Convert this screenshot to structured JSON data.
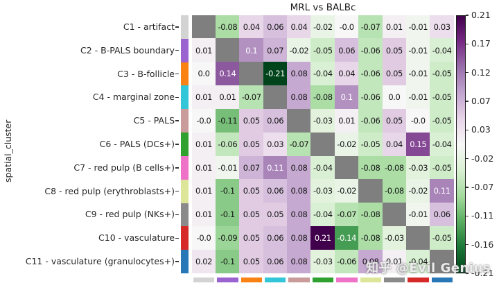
{
  "title": "MRL vs BALBc",
  "y_axis_label": "spatial_cluster",
  "watermark": "知乎 @Evil Genius",
  "chart_data": {
    "type": "heatmap",
    "title": "MRL vs BALBc",
    "ylabel": "spatial_cluster",
    "xlabel": "",
    "vmin": -0.21,
    "vmax": 0.21,
    "colormap": "PRGn_r (purple = positive, green = negative)",
    "colormap_stops_pos_to_neg": [
      "#40004b",
      "#762a83",
      "#9970ab",
      "#c2a5cf",
      "#e7d4e8",
      "#f7f7f7",
      "#d9f0d3",
      "#a6dba0",
      "#5aae61",
      "#1b7837",
      "#00441b"
    ],
    "diagonal_color": "#7f7f7f",
    "grid": false,
    "legend_position": "right-colorbar",
    "categories": [
      "C1 - artifact",
      "C2 - B-PALS boundary",
      "C3 - B-follicle",
      "C4 - marginal zone",
      "C5 - PALS",
      "C6 - PALS (DCs+)",
      "C7 - red pulp (B cells+)",
      "C8 - red pulp (erythroblasts+)",
      "C9 - red pulp (NKs+)",
      "C10 - vasculature",
      "C11 - vasculature (granulocytes+)"
    ],
    "category_colors": [
      "#d3d3d3",
      "#9a63cf",
      "#fa8114",
      "#33c6d8",
      "#c99b9b",
      "#2ea12e",
      "#ed72c8",
      "#dde698",
      "#8a8a8a",
      "#d62a28",
      "#2878b8"
    ],
    "values": [
      [
        null,
        "-0.08",
        "0.04",
        "0.06",
        "0.04",
        "-0.02",
        "-0.0",
        "-0.07",
        "0.01",
        "-0.01",
        "0.03"
      ],
      [
        "0.01",
        null,
        "0.1",
        "0.07",
        "-0.02",
        "-0.05",
        "0.06",
        "-0.06",
        "0.05",
        "-0.01",
        "-0.04"
      ],
      [
        "0.0",
        "0.14",
        null,
        "-0.21",
        "0.08",
        "-0.04",
        "0.04",
        "-0.06",
        "0.05",
        "-0.01",
        "-0.05"
      ],
      [
        "0.01",
        "0.01",
        "-0.07",
        null,
        "0.08",
        "-0.08",
        "0.1",
        "-0.06",
        "0.0",
        "-0.01",
        "-0.05"
      ],
      [
        "-0.0",
        "-0.11",
        "0.05",
        "0.06",
        null,
        "-0.03",
        "0.01",
        "-0.06",
        "0.05",
        "-0.0",
        "-0.05"
      ],
      [
        "0.01",
        "-0.06",
        "0.05",
        "0.03",
        "-0.07",
        null,
        "-0.02",
        "-0.05",
        "0.04",
        "0.15",
        "-0.04"
      ],
      [
        "0.01",
        "-0.01",
        "0.07",
        "0.11",
        "0.08",
        "-0.04",
        null,
        "-0.08",
        "-0.08",
        "-0.03",
        "-0.05"
      ],
      [
        "0.01",
        "-0.1",
        "0.05",
        "0.06",
        "0.08",
        "-0.03",
        "-0.02",
        null,
        "-0.08",
        "-0.02",
        "0.11"
      ],
      [
        "0.01",
        "-0.1",
        "0.05",
        "0.05",
        "0.08",
        "-0.04",
        "-0.07",
        "-0.08",
        null,
        "-0.01",
        "0.06"
      ],
      [
        "-0.0",
        "-0.09",
        "0.05",
        "0.06",
        "0.08",
        "0.21",
        "-0.14",
        "-0.08",
        "-0.03",
        null,
        "-0.05"
      ],
      [
        "0.02",
        "-0.1",
        "0.05",
        "0.06",
        "0.08",
        "-0.03",
        "-0.06",
        "0.08",
        "0.01",
        "-0.04",
        null
      ]
    ],
    "colorbar_ticks": [
      "0.21",
      "0.17",
      "0.12",
      "0.07",
      "0.03",
      "-0.02",
      "-0.07",
      "-0.11",
      "-0.16",
      "-0.21"
    ]
  }
}
